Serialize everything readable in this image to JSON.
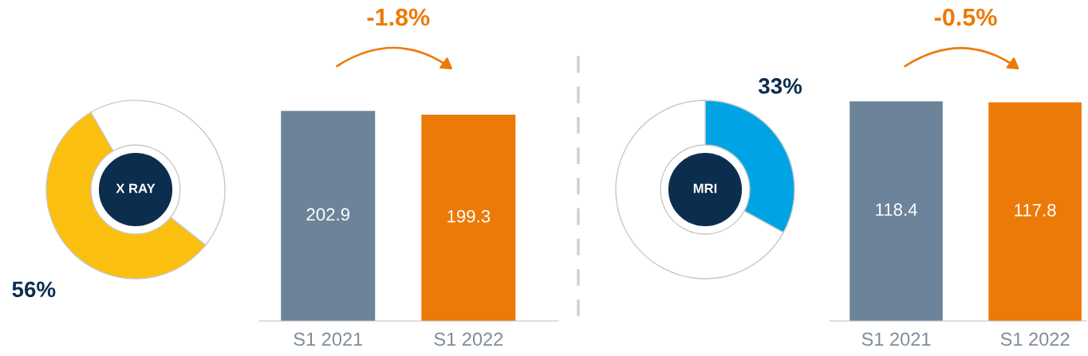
{
  "chart_data": [
    {
      "type": "donut",
      "categories": [
        null,
        null
      ],
      "values": [
        56,
        44
      ],
      "colors": [
        "#fbc00f",
        "#ffffff"
      ],
      "value_labels": [
        "56%",
        null
      ],
      "annotations": [
        "X RAY"
      ]
    },
    {
      "type": "bar",
      "categories": [
        "S1 2021",
        "S1 2022"
      ],
      "values": [
        202.9,
        199.3
      ],
      "colors": [
        "#6d8399",
        "#ec7a08"
      ],
      "data_labels": true,
      "annotations": [
        "-1.8%"
      ]
    },
    {
      "type": "donut",
      "categories": [
        null,
        null
      ],
      "values": [
        33,
        67
      ],
      "colors": [
        "#00a4e4",
        "#ffffff"
      ],
      "value_labels": [
        "33%",
        null
      ],
      "annotations": [
        "MRI"
      ]
    },
    {
      "type": "bar",
      "categories": [
        "S1 2021",
        "S1 2022"
      ],
      "values": [
        118.4,
        117.8
      ],
      "colors": [
        "#6d8399",
        "#ec7a08"
      ],
      "data_labels": true,
      "annotations": [
        "-0.5%"
      ]
    }
  ]
}
